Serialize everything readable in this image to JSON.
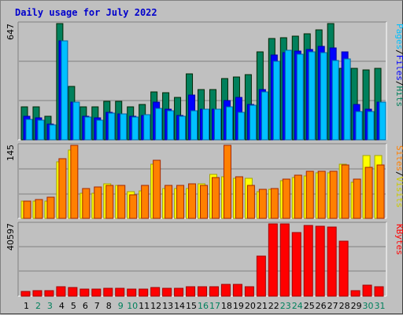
{
  "title": "Daily usage for July 2022",
  "colors": {
    "hits": "#00805c",
    "files": "#0000ff",
    "pages": "#00c0ff",
    "visits": "#ffff00",
    "sites": "#ff8000",
    "kbytes": "#ff0000",
    "weekend_label": "#00805c",
    "weekday_label": "#000000"
  },
  "legends": {
    "top": [
      {
        "text": "Pages",
        "color": "#00c0ff"
      },
      {
        "text": "/",
        "color": "#000000"
      },
      {
        "text": "Files",
        "color": "#0000ff"
      },
      {
        "text": "/",
        "color": "#000000"
      },
      {
        "text": "Hits",
        "color": "#00805c"
      }
    ],
    "middle": [
      {
        "text": "Sites",
        "color": "#ff8000"
      },
      {
        "text": "/",
        "color": "#000000"
      },
      {
        "text": "Visits",
        "color": "#cccc00"
      }
    ],
    "bottom": [
      {
        "text": "KBytes",
        "color": "#ff0000"
      }
    ]
  },
  "chart_data": [
    {
      "type": "bar",
      "title": "Daily usage for July 2022",
      "ylabel": "Pages / Files / Hits",
      "ymax_label": "647",
      "ylim": [
        0,
        647
      ],
      "categories": [
        "1",
        "2",
        "3",
        "4",
        "5",
        "6",
        "7",
        "8",
        "9",
        "10",
        "11",
        "12",
        "13",
        "14",
        "15",
        "16",
        "17",
        "18",
        "19",
        "20",
        "21",
        "22",
        "23",
        "24",
        "25",
        "26",
        "27",
        "28",
        "29",
        "30",
        "31"
      ],
      "weekend_days": [
        "2",
        "3",
        "9",
        "10",
        "16",
        "17",
        "23",
        "24",
        "30",
        "31"
      ],
      "series": [
        {
          "name": "Hits",
          "values": [
            185,
            185,
            131,
            647,
            297,
            185,
            185,
            216,
            216,
            185,
            198,
            266,
            261,
            235,
            368,
            280,
            280,
            339,
            351,
            363,
            491,
            565,
            567,
            576,
            592,
            610,
            646,
            396,
            396,
            389,
            398
          ]
        },
        {
          "name": "Files",
          "values": [
            130,
            123,
            88,
            550,
            208,
            130,
            123,
            152,
            144,
            130,
            137,
            210,
            171,
            137,
            251,
            170,
            170,
            218,
            236,
            196,
            278,
            474,
            484,
            494,
            502,
            520,
            512,
            490,
            196,
            169,
            209
          ]
        },
        {
          "name": "Pages",
          "values": [
            112,
            110,
            81,
            550,
            212,
            125,
            111,
            148,
            146,
            127,
            138,
            173,
            163,
            131,
            160,
            172,
            170,
            183,
            151,
            192,
            265,
            435,
            497,
            477,
            490,
            486,
            440,
            451,
            159,
            158,
            209
          ]
        }
      ]
    },
    {
      "type": "bar",
      "ylabel": "Sites / Visits",
      "ymax_label": "145",
      "ylim": [
        0,
        145
      ],
      "categories": [
        "1",
        "2",
        "3",
        "4",
        "5",
        "6",
        "7",
        "8",
        "9",
        "10",
        "11",
        "12",
        "13",
        "14",
        "15",
        "16",
        "17",
        "18",
        "19",
        "20",
        "21",
        "22",
        "23",
        "24",
        "25",
        "26",
        "27",
        "28",
        "29",
        "30",
        "31"
      ],
      "series": [
        {
          "name": "Visits",
          "values": [
            35,
            35,
            35,
            112,
            136,
            50,
            50,
            68,
            65,
            53,
            54,
            108,
            60,
            60,
            60,
            68,
            88,
            82,
            80,
            80,
            53,
            58,
            75,
            81,
            84,
            90,
            90,
            107,
            72,
            124,
            125
          ]
        },
        {
          "name": "Sites",
          "values": [
            35,
            38,
            42,
            119,
            145,
            60,
            63,
            66,
            65,
            47,
            65,
            116,
            66,
            66,
            69,
            65,
            81,
            145,
            83,
            65,
            58,
            60,
            78,
            85,
            94,
            94,
            93,
            106,
            78,
            102,
            106
          ]
        }
      ]
    },
    {
      "type": "bar",
      "ylabel": "KBytes",
      "ymax_label": "40597",
      "ylim": [
        0,
        40597
      ],
      "categories": [
        "1",
        "2",
        "3",
        "4",
        "5",
        "6",
        "7",
        "8",
        "9",
        "10",
        "11",
        "12",
        "13",
        "14",
        "15",
        "16",
        "17",
        "18",
        "19",
        "20",
        "21",
        "22",
        "23",
        "24",
        "25",
        "26",
        "27",
        "28",
        "29",
        "30",
        "31"
      ],
      "series": [
        {
          "name": "KBytes",
          "values": [
            2600,
            3100,
            3100,
            5400,
            4900,
            4000,
            4000,
            4500,
            4500,
            4000,
            4000,
            5000,
            4500,
            4500,
            5500,
            5500,
            5500,
            6500,
            6500,
            5500,
            22500,
            40597,
            40597,
            35600,
            39800,
            39400,
            38800,
            30900,
            3100,
            6000,
            5400
          ]
        }
      ]
    }
  ]
}
